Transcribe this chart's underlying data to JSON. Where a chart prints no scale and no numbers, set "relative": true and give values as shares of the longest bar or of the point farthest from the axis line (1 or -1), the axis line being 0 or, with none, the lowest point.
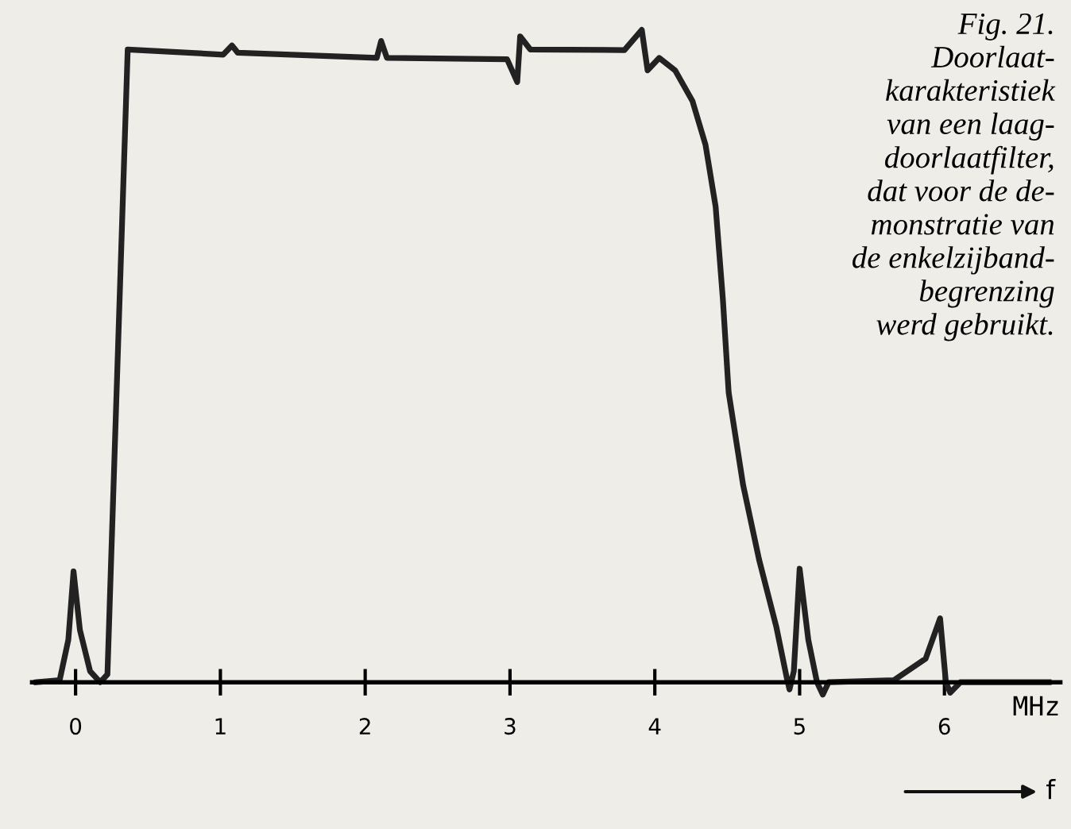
{
  "chart_data": {
    "type": "line",
    "relative": true,
    "title": "Fig. 21.\nDoorlaat-\nkarakteristiek\nvan een laag-\ndoorlaatfilter,\ndat voor de de-\nmonstratie van\nde enkelzijband-\nbegrenzing\nwerd gebruikt.",
    "xlabel": "f",
    "annotations": [
      "MHz"
    ],
    "xlim": [
      -0.3,
      6.8
    ],
    "xticks": [
      0,
      1,
      2,
      3,
      4,
      5,
      6
    ],
    "grid": false,
    "legend": false,
    "marker": "none",
    "line_style": "solid",
    "series": [
      {
        "color": "#222222",
        "x": [
          -0.27,
          -0.11,
          -0.05,
          -0.014,
          0.03,
          0.1,
          0.17,
          0.22,
          0.36,
          1.02,
          1.08,
          1.12,
          2.08,
          2.11,
          2.15,
          2.98,
          3.05,
          3.07,
          3.14,
          3.79,
          3.91,
          3.95,
          4.03,
          4.14,
          4.26,
          4.35,
          4.42,
          4.47,
          4.51,
          4.61,
          4.72,
          4.84,
          4.91,
          4.93,
          4.96,
          5.0,
          5.06,
          5.12,
          5.16,
          5.2,
          5.65,
          5.87,
          5.97,
          6.01,
          6.04,
          6.11,
          6.72
        ],
        "values": [
          0,
          0.003,
          0.065,
          0.17,
          0.08,
          0.017,
          0,
          0.012,
          0.97,
          0.962,
          0.976,
          0.965,
          0.957,
          0.983,
          0.957,
          0.955,
          0.92,
          0.99,
          0.97,
          0.969,
          1.0,
          0.938,
          0.957,
          0.938,
          0.891,
          0.824,
          0.729,
          0.587,
          0.444,
          0.302,
          0.188,
          0.084,
          0.008,
          -0.011,
          0.017,
          0.174,
          0.065,
          0,
          -0.019,
          0,
          0.003,
          0.036,
          0.098,
          0,
          -0.016,
          0,
          0
        ]
      }
    ]
  }
}
